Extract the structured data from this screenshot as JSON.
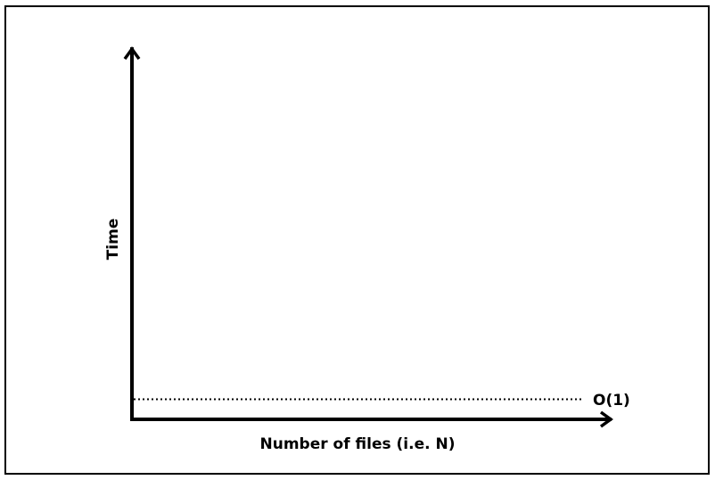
{
  "chart_data": {
    "type": "line",
    "title": "",
    "xlabel": "Number of files (i.e. N)",
    "ylabel": "Time",
    "axes": {
      "x_ticks": false,
      "y_ticks": false,
      "grid": false
    },
    "series": [
      {
        "name": "O(1)",
        "style": "dotted",
        "shape": "constant"
      }
    ]
  },
  "colors": {
    "axis": "#000000",
    "series": "#000000",
    "background": "#ffffff"
  }
}
